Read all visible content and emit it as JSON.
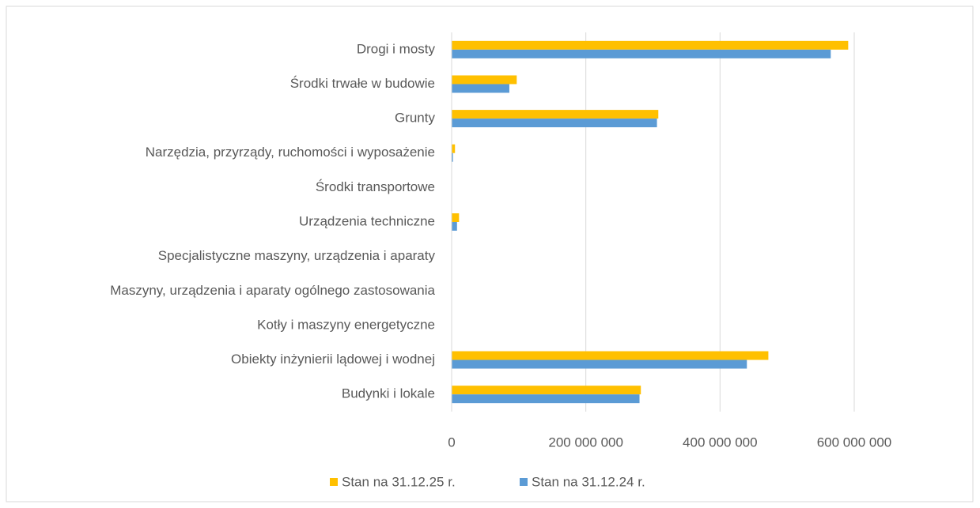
{
  "chart_data": {
    "type": "bar",
    "orientation": "horizontal",
    "categories": [
      "Drogi i mosty",
      "Środki trwałe w budowie",
      "Grunty",
      "Narzędzia, przyrządy, ruchomości i wyposażenie",
      "Środki transportowe",
      "Urządzenia techniczne",
      "Specjalistyczne maszyny, urządzenia i aparaty",
      "Maszyny, urządzenia i aparaty ogólnego zastosowania",
      "Kotły i maszyny energetyczne",
      "Obiekty inżynierii lądowej i wodnej",
      "Budynki i lokale"
    ],
    "series": [
      {
        "name": "Stan na 31.12.25 r.",
        "color": "#ffc000",
        "values": [
          591000000,
          97000000,
          308000000,
          5000000,
          0,
          11000000,
          0,
          0,
          0,
          472000000,
          282000000
        ]
      },
      {
        "name": "Stan na 31.12.24 r.",
        "color": "#5b9bd5",
        "values": [
          565000000,
          86000000,
          306000000,
          2000000,
          0,
          8000000,
          0,
          0,
          0,
          440000000,
          280000000
        ]
      }
    ],
    "xlim": [
      0,
      600000000
    ],
    "xticks": [
      0,
      {
        "value": 200000000,
        "label": "200 000 000"
      },
      {
        "value": 400000000,
        "label": "400 000 000"
      },
      {
        "value": 600000000,
        "label": "600 000 000"
      }
    ],
    "grid": true,
    "legend": "bottom"
  }
}
